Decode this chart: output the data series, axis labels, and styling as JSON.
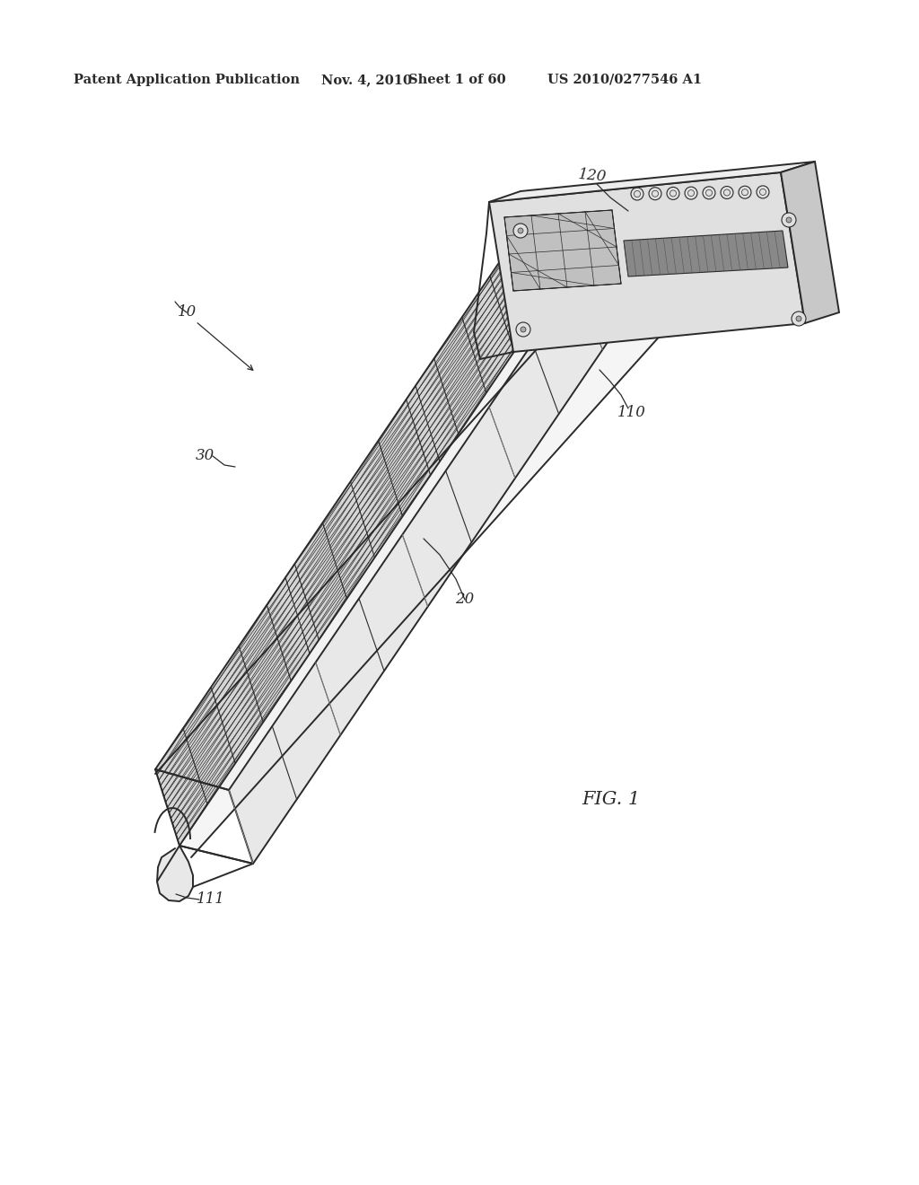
{
  "title_line1": "Patent Application Publication",
  "title_date": "Nov. 4, 2010",
  "title_sheet": "Sheet 1 of 60",
  "title_patent": "US 2010/0277546 A1",
  "fig_label": "FIG. 1",
  "background_color": "#ffffff",
  "line_color": "#2a2a2a",
  "lw_main": 1.4,
  "lw_detail": 0.8,
  "lw_thin": 0.5
}
